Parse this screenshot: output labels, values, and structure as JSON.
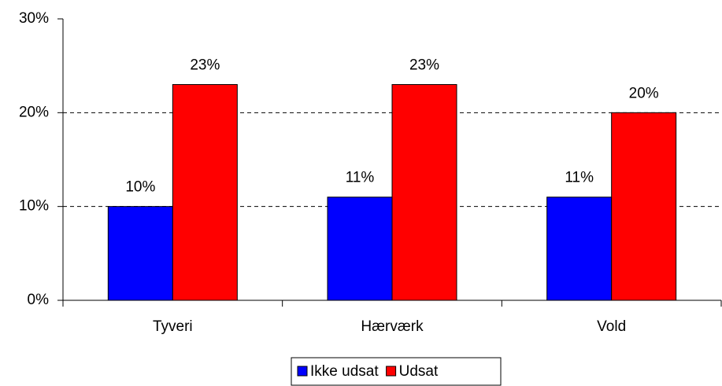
{
  "chart_data": {
    "type": "bar",
    "categories": [
      "Tyveri",
      "Hærværk",
      "Vold"
    ],
    "series": [
      {
        "name": "Ikke udsat",
        "color": "#0000ff",
        "values": [
          10,
          11,
          11
        ],
        "value_labels": [
          "10%",
          "11%",
          "11%"
        ]
      },
      {
        "name": "Udsat",
        "color": "#ff0000",
        "values": [
          23,
          23,
          20
        ],
        "value_labels": [
          "23%",
          "23%",
          "20%"
        ]
      }
    ],
    "ylim": [
      0,
      30
    ],
    "yticks": [
      {
        "value": 0,
        "label": "0%"
      },
      {
        "value": 10,
        "label": "10%"
      },
      {
        "value": 20,
        "label": "20%"
      },
      {
        "value": 30,
        "label": "30%"
      }
    ],
    "grid": true,
    "legend": "bottom"
  }
}
